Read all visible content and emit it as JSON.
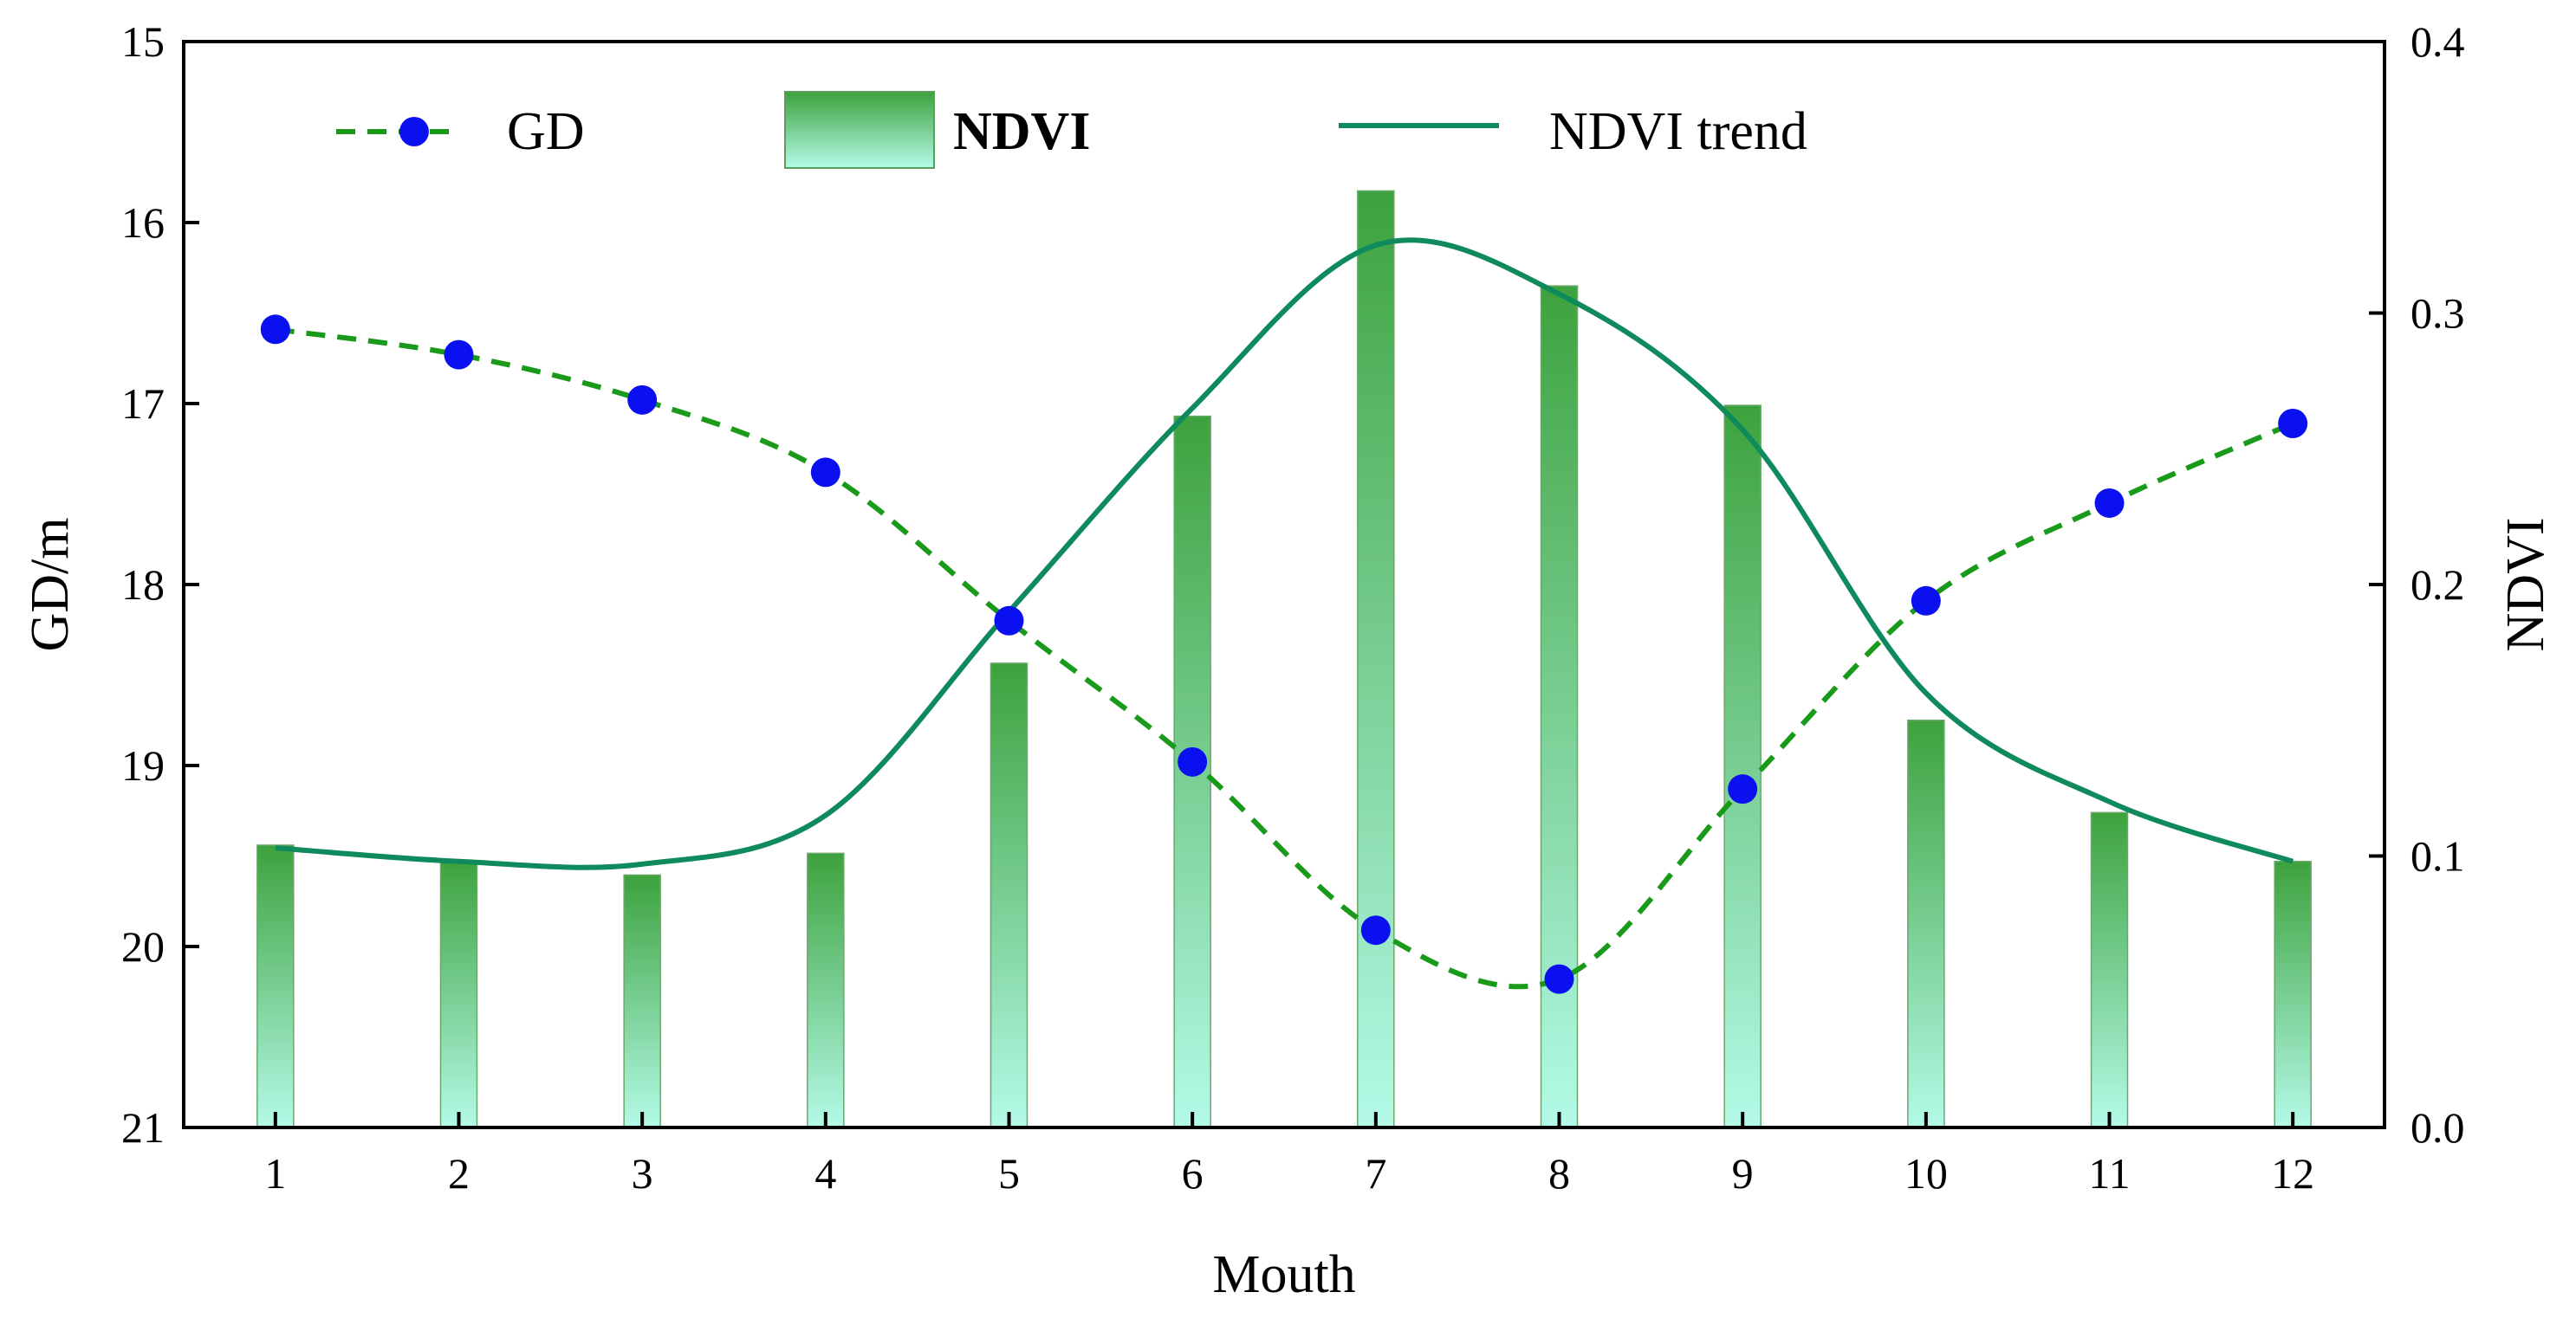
{
  "chart_data": {
    "type": "bar+line",
    "xlabel": "Mouth",
    "ylabel_left": "GD/m",
    "ylabel_right": "NDVI",
    "categories": [
      1,
      2,
      3,
      4,
      5,
      6,
      7,
      8,
      9,
      10,
      11,
      12
    ],
    "left_axis": {
      "min": 15,
      "max": 21,
      "inverted": true,
      "ticks": [
        15,
        16,
        17,
        18,
        19,
        20,
        21
      ]
    },
    "right_axis": {
      "min": 0.0,
      "max": 0.4,
      "ticks": [
        "0.0",
        "0.1",
        "0.2",
        "0.3",
        "0.4"
      ]
    },
    "series": [
      {
        "name": "GD",
        "kind": "line-dashed-markers",
        "axis": "left",
        "color": "#1a9a1a",
        "marker_color": "#0a10f0",
        "values": [
          16.59,
          16.73,
          16.98,
          17.38,
          18.2,
          18.98,
          19.91,
          20.18,
          19.13,
          18.09,
          17.55,
          17.11
        ]
      },
      {
        "name": "NDVI",
        "kind": "bar",
        "axis": "right",
        "color_top": "#3da23d",
        "color_bottom": "#b4fae8",
        "values": [
          0.104,
          0.098,
          0.093,
          0.101,
          0.171,
          0.262,
          0.345,
          0.31,
          0.266,
          0.15,
          0.116,
          0.098
        ]
      },
      {
        "name": "NDVI trend",
        "kind": "smooth-line",
        "axis": "right",
        "color": "#0e8a5c",
        "values": [
          0.103,
          0.098,
          0.097,
          0.115,
          0.19,
          0.265,
          0.325,
          0.307,
          0.257,
          0.16,
          0.12,
          0.098
        ]
      }
    ],
    "legend": {
      "position": "top",
      "entries": [
        "GD",
        "NDVI",
        "NDVI trend"
      ]
    }
  }
}
